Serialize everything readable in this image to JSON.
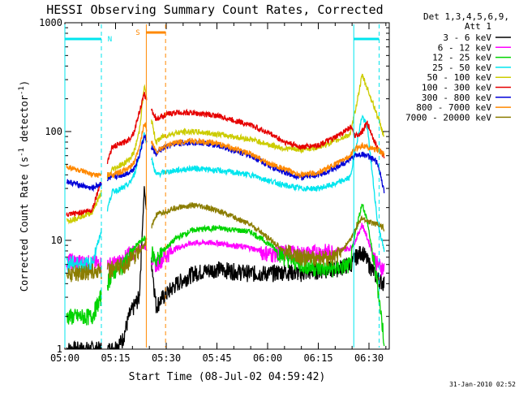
{
  "chart_data": {
    "type": "line",
    "title": "HESSI Observing Summary Count Rates, Corrected",
    "xlabel": "Start Time (08-Jul-02 04:59:42)",
    "ylabel_main": "Corrected Count Rate (s",
    "ylabel_sup1": "-1",
    "ylabel_mid": " detector",
    "ylabel_sup2": "-1",
    "ylabel_end": ")",
    "footer": "31-Jan-2010 02:52",
    "y_scale": "log",
    "ylim": [
      1,
      1000
    ],
    "xlim_minutes": [
      0,
      40
    ],
    "x_ticks": [
      {
        "m": 0,
        "label": "05:00"
      },
      {
        "m": 15,
        "label": "05:15"
      },
      {
        "m": 30,
        "label": "05:30"
      },
      {
        "m": 45,
        "label": "05:45"
      },
      {
        "m": 60,
        "label": "06:00"
      },
      {
        "m": 75,
        "label": "06:15"
      },
      {
        "m": 90,
        "label": "06:30"
      }
    ],
    "y_ticks": [
      {
        "v": 1,
        "label": "1"
      },
      {
        "v": 10,
        "label": "10"
      },
      {
        "v": 100,
        "label": "100"
      },
      {
        "v": 1000,
        "label": "1000"
      }
    ],
    "legend_title": [
      "Det 1,3,4,5,6,9,",
      "Att 1"
    ],
    "series": [
      {
        "name": "3 - 6 keV",
        "color": "#000000",
        "points": [
          [
            0.5,
            1
          ],
          [
            8,
            1
          ],
          [
            14,
            1
          ],
          [
            17,
            1.2
          ],
          [
            19,
            2
          ],
          [
            20.5,
            2.5
          ],
          [
            22,
            3
          ],
          [
            23.5,
            30
          ],
          [
            27,
            2.5
          ],
          [
            29,
            3
          ],
          [
            33,
            4
          ],
          [
            38,
            5
          ],
          [
            45,
            5.5
          ],
          [
            55,
            5
          ],
          [
            61,
            5
          ],
          [
            65,
            5.2
          ],
          [
            70,
            5
          ],
          [
            75,
            5.3
          ],
          [
            80,
            5.5
          ],
          [
            84.5,
            6
          ],
          [
            86,
            7
          ],
          [
            88,
            8
          ],
          [
            89.5,
            6.5
          ],
          [
            92.5,
            4.5
          ],
          [
            94.5,
            4
          ]
        ]
      },
      {
        "name": "6 - 12 keV",
        "color": "#ff00ff",
        "points": [
          [
            0.5,
            6.5
          ],
          [
            8,
            6.2
          ],
          [
            14,
            6
          ],
          [
            17,
            6.5
          ],
          [
            19,
            7.5
          ],
          [
            20.5,
            8
          ],
          [
            22,
            8.5
          ],
          [
            23.5,
            9
          ],
          [
            27,
            6
          ],
          [
            29,
            7
          ],
          [
            33,
            8.5
          ],
          [
            38,
            9.5
          ],
          [
            45,
            9.5
          ],
          [
            55,
            8.5
          ],
          [
            61,
            7.5
          ],
          [
            65,
            7.8
          ],
          [
            70,
            7.5
          ],
          [
            75,
            7.8
          ],
          [
            80,
            8
          ],
          [
            84.5,
            8.5
          ],
          [
            86,
            10
          ],
          [
            88,
            14
          ],
          [
            89.5,
            10.5
          ],
          [
            92.5,
            6
          ],
          [
            94.5,
            5.5
          ]
        ]
      },
      {
        "name": "12 - 25 keV",
        "color": "#00d400",
        "points": [
          [
            0.5,
            2
          ],
          [
            8,
            2
          ],
          [
            14,
            5
          ],
          [
            17,
            6
          ],
          [
            19,
            7
          ],
          [
            20.5,
            8.5
          ],
          [
            22,
            9.5
          ],
          [
            23.5,
            10.5
          ],
          [
            27,
            6.5
          ],
          [
            29,
            8
          ],
          [
            33,
            10.5
          ],
          [
            38,
            12.5
          ],
          [
            45,
            13
          ],
          [
            55,
            12
          ],
          [
            61,
            9
          ],
          [
            65,
            7
          ],
          [
            70,
            6
          ],
          [
            75,
            5.5
          ],
          [
            80,
            5.5
          ],
          [
            84.5,
            6
          ],
          [
            86,
            12
          ],
          [
            88,
            22
          ],
          [
            89.5,
            15
          ],
          [
            92.5,
            4
          ],
          [
            94.5,
            1.2
          ]
        ]
      },
      {
        "name": "25 - 50 keV",
        "color": "#00e5ee",
        "points": [
          [
            0.5,
            6.2
          ],
          [
            8,
            6
          ],
          [
            14,
            28
          ],
          [
            17,
            30
          ],
          [
            19,
            33
          ],
          [
            20.5,
            40
          ],
          [
            22,
            60
          ],
          [
            23.5,
            95
          ],
          [
            27,
            40
          ],
          [
            29,
            42
          ],
          [
            33,
            44
          ],
          [
            38,
            46
          ],
          [
            45,
            44
          ],
          [
            55,
            40
          ],
          [
            61,
            35
          ],
          [
            65,
            32
          ],
          [
            70,
            30
          ],
          [
            75,
            30
          ],
          [
            80,
            33
          ],
          [
            84.5,
            38
          ],
          [
            86,
            70
          ],
          [
            88,
            140
          ],
          [
            89.5,
            110
          ],
          [
            92.5,
            15
          ],
          [
            94.5,
            8
          ]
        ]
      },
      {
        "name": "50 - 100 keV",
        "color": "#cccc00",
        "points": [
          [
            0.5,
            15
          ],
          [
            8,
            18
          ],
          [
            14,
            45
          ],
          [
            17,
            50
          ],
          [
            19,
            55
          ],
          [
            20.5,
            65
          ],
          [
            22,
            100
          ],
          [
            23.5,
            260
          ],
          [
            27,
            80
          ],
          [
            29,
            90
          ],
          [
            33,
            98
          ],
          [
            38,
            100
          ],
          [
            45,
            95
          ],
          [
            55,
            85
          ],
          [
            61,
            75
          ],
          [
            65,
            70
          ],
          [
            70,
            68
          ],
          [
            75,
            72
          ],
          [
            80,
            82
          ],
          [
            84.5,
            95
          ],
          [
            86,
            160
          ],
          [
            88,
            330
          ],
          [
            89.5,
            250
          ],
          [
            92.5,
            140
          ],
          [
            94.5,
            90
          ]
        ]
      },
      {
        "name": "100 - 300 keV",
        "color": "#e60000",
        "points": [
          [
            0.5,
            17
          ],
          [
            8,
            19
          ],
          [
            14,
            72
          ],
          [
            17,
            78
          ],
          [
            19,
            85
          ],
          [
            20.5,
            100
          ],
          [
            22,
            150
          ],
          [
            23.5,
            220
          ],
          [
            27,
            130
          ],
          [
            29,
            140
          ],
          [
            33,
            150
          ],
          [
            38,
            148
          ],
          [
            45,
            140
          ],
          [
            55,
            115
          ],
          [
            61,
            95
          ],
          [
            65,
            80
          ],
          [
            70,
            72
          ],
          [
            75,
            75
          ],
          [
            80,
            88
          ],
          [
            84.5,
            110
          ],
          [
            86,
            90
          ],
          [
            88,
            100
          ],
          [
            89.5,
            120
          ],
          [
            92.5,
            70
          ],
          [
            94.5,
            60
          ]
        ]
      },
      {
        "name": "300 - 800 keV",
        "color": "#0000d8",
        "points": [
          [
            0.5,
            35
          ],
          [
            8,
            30
          ],
          [
            14,
            38
          ],
          [
            17,
            40
          ],
          [
            19,
            42
          ],
          [
            20.5,
            46
          ],
          [
            22,
            60
          ],
          [
            23.5,
            90
          ],
          [
            27,
            62
          ],
          [
            29,
            70
          ],
          [
            33,
            78
          ],
          [
            38,
            80
          ],
          [
            45,
            75
          ],
          [
            55,
            60
          ],
          [
            61,
            48
          ],
          [
            65,
            42
          ],
          [
            70,
            38
          ],
          [
            75,
            40
          ],
          [
            80,
            46
          ],
          [
            84.5,
            56
          ],
          [
            86,
            60
          ],
          [
            88,
            62
          ],
          [
            89.5,
            60
          ],
          [
            92.5,
            52
          ],
          [
            94.5,
            28
          ]
        ]
      },
      {
        "name": "800 - 7000 keV",
        "color": "#ff8800",
        "points": [
          [
            0.5,
            48
          ],
          [
            8,
            40
          ],
          [
            14,
            40
          ],
          [
            17,
            43
          ],
          [
            19,
            46
          ],
          [
            20.5,
            52
          ],
          [
            22,
            70
          ],
          [
            23.5,
            120
          ],
          [
            27,
            65
          ],
          [
            29,
            72
          ],
          [
            33,
            80
          ],
          [
            38,
            82
          ],
          [
            45,
            78
          ],
          [
            55,
            62
          ],
          [
            61,
            50
          ],
          [
            65,
            45
          ],
          [
            70,
            40
          ],
          [
            75,
            42
          ],
          [
            80,
            50
          ],
          [
            84.5,
            60
          ],
          [
            86,
            70
          ],
          [
            88,
            75
          ],
          [
            89.5,
            72
          ],
          [
            92.5,
            68
          ],
          [
            94.5,
            62
          ]
        ]
      },
      {
        "name": "7000 - 20000 keV",
        "color": "#8b7d00",
        "points": [
          [
            0.5,
            5
          ],
          [
            8,
            5.2
          ],
          [
            14,
            5.5
          ],
          [
            17,
            5.8
          ],
          [
            19,
            6.5
          ],
          [
            20.5,
            7.2
          ],
          [
            22,
            8
          ],
          [
            23.5,
            9
          ],
          [
            27,
            17
          ],
          [
            29,
            18
          ],
          [
            33,
            20
          ],
          [
            38,
            21
          ],
          [
            45,
            19
          ],
          [
            55,
            14
          ],
          [
            61,
            10
          ],
          [
            65,
            8
          ],
          [
            70,
            7
          ],
          [
            75,
            6.8
          ],
          [
            80,
            7
          ],
          [
            84.5,
            10
          ],
          [
            86,
            13
          ],
          [
            88,
            16
          ],
          [
            89.5,
            15
          ],
          [
            92.5,
            14
          ],
          [
            94.5,
            13
          ]
        ]
      }
    ],
    "gaps": [
      [
        10.8,
        12.5
      ],
      [
        24.3,
        25.6
      ]
    ],
    "annotations": {
      "night_label": "N",
      "saa_label": "S",
      "night_color": "#00e5ee",
      "saa_color": "#ff8800"
    }
  }
}
